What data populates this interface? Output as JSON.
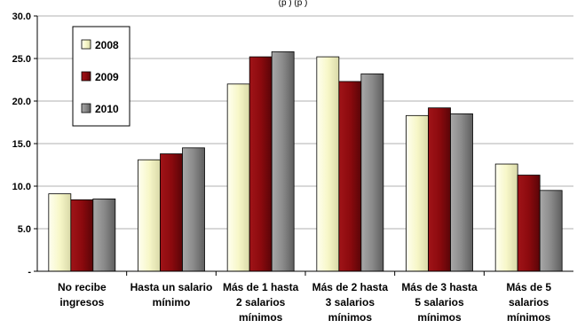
{
  "chart_data": {
    "type": "bar",
    "title": "",
    "subtitle_partial": "(p          )          (p      )",
    "xlabel": "",
    "ylabel": "",
    "categories": [
      [
        "No recibe",
        "ingresos"
      ],
      [
        "Hasta un salario",
        "mínimo"
      ],
      [
        "Más de 1 hasta",
        "2 salarios",
        "mínimos"
      ],
      [
        "Más de 2 hasta",
        "3 salarios",
        "mínimos"
      ],
      [
        "Más de 3 hasta",
        "5 salarios",
        "mínimos"
      ],
      [
        "Más de 5",
        "salarios",
        "mínimos"
      ]
    ],
    "series": [
      {
        "name": "2008",
        "color": "#fbfbd2",
        "values": [
          9.1,
          13.1,
          22.0,
          25.2,
          18.3,
          12.6
        ]
      },
      {
        "name": "2009",
        "color": "#8c0a0e",
        "values": [
          8.4,
          13.8,
          25.2,
          22.3,
          19.2,
          11.3
        ]
      },
      {
        "name": "2010",
        "color": "#8a8a8a",
        "values": [
          8.5,
          14.5,
          25.8,
          23.2,
          18.5,
          9.5
        ]
      }
    ],
    "ylim": [
      0,
      30
    ],
    "yticks": [
      "-",
      "5.0",
      "10.0",
      "15.0",
      "20.0",
      "25.0",
      "30.0"
    ],
    "ytick_values": [
      0,
      5,
      10,
      15,
      20,
      25,
      30
    ],
    "grid": true,
    "legend_position": "top-left"
  }
}
